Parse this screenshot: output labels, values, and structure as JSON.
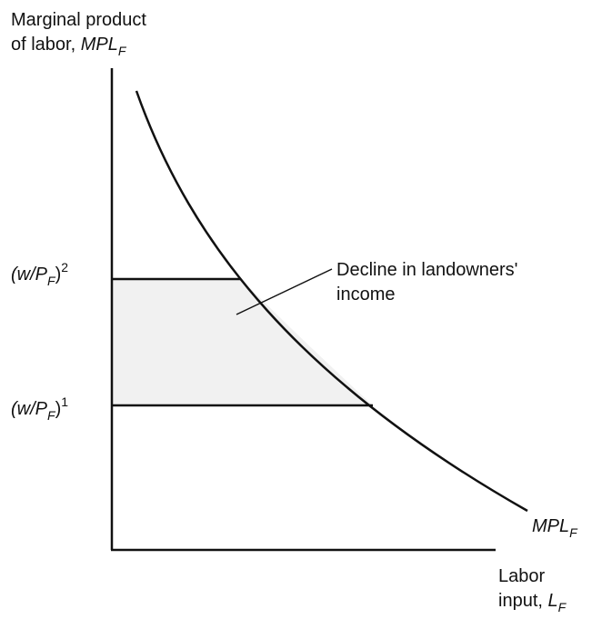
{
  "y_axis_label": {
    "line1": "Marginal product",
    "line2": "of labor, ",
    "symbol": "MPL",
    "subscript": "F"
  },
  "x_axis_label": {
    "line1": "Labor",
    "line2": "input, ",
    "symbol": "L",
    "subscript": "F"
  },
  "curve_label": {
    "symbol": "MPL",
    "subscript": "F"
  },
  "wage_levels": [
    {
      "open": "(w/P",
      "subscript": "F",
      "close": ")",
      "superscript": "2"
    },
    {
      "open": "(w/P",
      "subscript": "F",
      "close": ")",
      "superscript": "1"
    }
  ],
  "annotation": {
    "line1": "Decline in landowners'",
    "line2": "income"
  }
}
